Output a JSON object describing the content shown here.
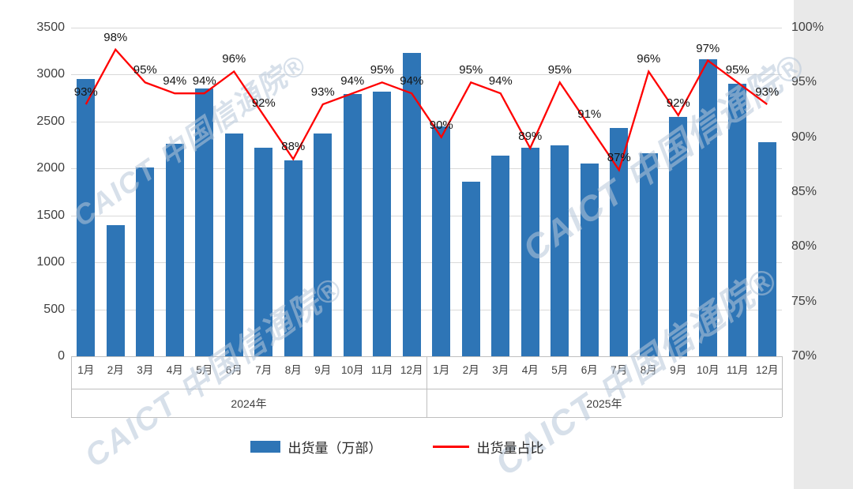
{
  "page": {
    "outer_background": "#e9e9e9",
    "canvas_background": "#ffffff"
  },
  "watermark": {
    "text": "CAICT 中国信通院®",
    "color": "#b7c7da"
  },
  "chart_data": {
    "type": "combo_bar_line",
    "categories": [
      "1月",
      "2月",
      "3月",
      "4月",
      "5月",
      "6月",
      "7月",
      "8月",
      "9月",
      "10月",
      "11月",
      "12月",
      "1月",
      "2月",
      "3月",
      "4月",
      "5月",
      "6月",
      "7月",
      "8月",
      "9月",
      "10月",
      "11月",
      "12月"
    ],
    "year_groups": [
      {
        "label": "2024年",
        "months": 12
      },
      {
        "label": "2025年",
        "months": 12
      }
    ],
    "series": [
      {
        "name": "出货量（万部）",
        "type": "bar",
        "axis": "left",
        "color": "#2e75b6",
        "values": [
          2950,
          1400,
          2010,
          2260,
          2850,
          2370,
          2220,
          2090,
          2370,
          2790,
          2820,
          3230,
          2450,
          1860,
          2140,
          2220,
          2250,
          2050,
          2430,
          2160,
          2550,
          3160,
          2900,
          2280
        ]
      },
      {
        "name": "出货量占比",
        "type": "line",
        "axis": "right",
        "color": "#ff0000",
        "values": [
          93,
          98,
          95,
          94,
          94,
          96,
          92,
          88,
          93,
          94,
          95,
          94,
          90,
          95,
          94,
          89,
          95,
          91,
          87,
          96,
          92,
          97,
          95,
          93
        ],
        "label_suffix": "%"
      }
    ],
    "left_axis": {
      "min": 0,
      "max": 3500,
      "step": 500,
      "tick_labels": [
        "0",
        "500",
        "1000",
        "1500",
        "2000",
        "2500",
        "3000",
        "3500"
      ]
    },
    "right_axis": {
      "min": 70,
      "max": 100,
      "step": 5,
      "tick_labels": [
        "70%",
        "75%",
        "80%",
        "85%",
        "90%",
        "95%",
        "100%"
      ]
    },
    "grid": true,
    "legend_position": "bottom"
  }
}
